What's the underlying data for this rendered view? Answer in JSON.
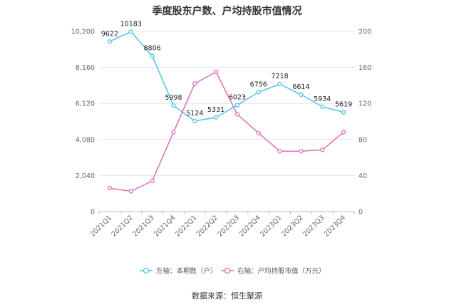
{
  "title": "季度股东户数、户均持股市值情况",
  "source": "数据来源：恒生聚源",
  "colors": {
    "left_series": "#4fc3f0",
    "right_series": "#dd6fb4"
  },
  "chart_data": {
    "type": "line",
    "categories": [
      "2021Q1",
      "2021Q2",
      "2021Q3",
      "2021Q4",
      "2022Q1",
      "2022Q2",
      "2022Q3",
      "2022Q4",
      "2023Q1",
      "2023Q2",
      "2023Q3",
      "2023Q4"
    ],
    "series": [
      {
        "name": "左轴：本期数（户）",
        "axis": "left",
        "values": [
          9622,
          10183,
          8806,
          5998,
          5124,
          5331,
          6023,
          6756,
          7218,
          6614,
          5934,
          5619
        ],
        "labels": [
          "9622",
          "10183",
          "8806",
          "5998",
          "5124",
          "5331",
          "6023",
          "6756",
          "7218",
          "6614",
          "5934",
          "5619"
        ]
      },
      {
        "name": "右轴：户均持股市值（万元）",
        "axis": "right",
        "values": [
          26,
          22.5,
          34,
          88,
          142,
          155,
          108,
          87,
          67,
          67,
          68.5,
          88
        ]
      }
    ],
    "y_left": {
      "ticks": [
        0,
        2040,
        4080,
        6120,
        8160,
        10200
      ],
      "tick_labels": [
        "0",
        "2,040",
        "4,080",
        "6,120",
        "8,160",
        "10,200"
      ],
      "ylim": [
        0,
        10200
      ]
    },
    "y_right": {
      "ticks": [
        0,
        40,
        80,
        120,
        160,
        200
      ],
      "tick_labels": [
        "0",
        "40",
        "80",
        "120",
        "160",
        "200"
      ],
      "ylim": [
        0,
        200
      ]
    },
    "grid": true,
    "legend_position": "bottom"
  }
}
